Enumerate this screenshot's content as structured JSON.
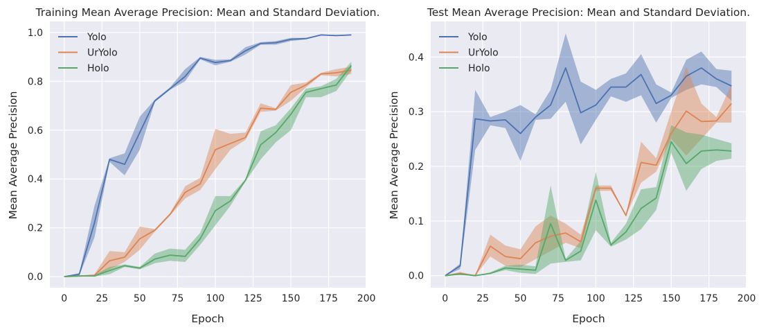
{
  "chart_data": [
    {
      "type": "line",
      "title": "Training Mean Average Precision: Mean and Standard Deviation.",
      "xlabel": "Epoch",
      "ylabel": "Mean Average Precision",
      "xlim": [
        -9.5,
        199.5
      ],
      "ylim": [
        -0.045,
        1.045
      ],
      "xticks": [
        0,
        25,
        50,
        75,
        100,
        125,
        150,
        175,
        200
      ],
      "yticks": [
        0.0,
        0.2,
        0.4,
        0.6,
        0.8,
        1.0
      ],
      "ytick_labels": [
        "0.0",
        "0.2",
        "0.4",
        "0.6",
        "0.8",
        "1.0"
      ],
      "grid": true,
      "legend_position": "top-left",
      "x": [
        0,
        10,
        20,
        30,
        40,
        50,
        60,
        70,
        80,
        90,
        100,
        110,
        120,
        130,
        140,
        150,
        160,
        170,
        180,
        190
      ],
      "series": [
        {
          "name": "Yolo",
          "color": "#4c72b0",
          "mean": [
            0.0,
            0.01,
            0.22,
            0.48,
            0.46,
            0.59,
            0.72,
            0.77,
            0.82,
            0.895,
            0.877,
            0.885,
            0.925,
            0.955,
            0.958,
            0.972,
            0.975,
            0.99,
            0.987,
            0.99
          ],
          "lower": [
            0.0,
            0.005,
            0.16,
            0.47,
            0.415,
            0.52,
            0.715,
            0.765,
            0.8,
            0.89,
            0.865,
            0.88,
            0.91,
            0.95,
            0.95,
            0.965,
            0.972,
            0.988,
            0.985,
            0.988
          ],
          "upper": [
            0.0,
            0.015,
            0.29,
            0.485,
            0.505,
            0.655,
            0.725,
            0.775,
            0.85,
            0.9,
            0.888,
            0.89,
            0.94,
            0.96,
            0.965,
            0.978,
            0.978,
            0.992,
            0.99,
            0.992
          ]
        },
        {
          "name": "UrYolo",
          "color": "#dd8452",
          "mean": [
            0.0,
            0.002,
            0.005,
            0.065,
            0.08,
            0.155,
            0.19,
            0.255,
            0.345,
            0.38,
            0.52,
            0.545,
            0.57,
            0.69,
            0.685,
            0.755,
            0.785,
            0.83,
            0.835,
            0.845
          ],
          "lower": [
            0.0,
            0.0,
            0.0,
            0.03,
            0.06,
            0.11,
            0.185,
            0.25,
            0.32,
            0.355,
            0.44,
            0.52,
            0.56,
            0.675,
            0.68,
            0.72,
            0.775,
            0.825,
            0.82,
            0.83
          ],
          "upper": [
            0.0,
            0.004,
            0.01,
            0.105,
            0.1,
            0.205,
            0.195,
            0.26,
            0.37,
            0.405,
            0.605,
            0.585,
            0.59,
            0.71,
            0.69,
            0.785,
            0.795,
            0.835,
            0.85,
            0.86
          ]
        },
        {
          "name": "Holo",
          "color": "#55a868",
          "mean": [
            0.0,
            0.003,
            0.003,
            0.025,
            0.045,
            0.035,
            0.072,
            0.088,
            0.083,
            0.155,
            0.27,
            0.31,
            0.395,
            0.54,
            0.59,
            0.665,
            0.755,
            0.77,
            0.785,
            0.865
          ],
          "lower": [
            0.0,
            0.0,
            0.0,
            0.01,
            0.04,
            0.03,
            0.055,
            0.065,
            0.06,
            0.13,
            0.21,
            0.29,
            0.39,
            0.48,
            0.55,
            0.6,
            0.735,
            0.735,
            0.76,
            0.845
          ],
          "upper": [
            0.0,
            0.006,
            0.006,
            0.04,
            0.05,
            0.04,
            0.095,
            0.115,
            0.11,
            0.18,
            0.33,
            0.33,
            0.4,
            0.595,
            0.62,
            0.69,
            0.77,
            0.78,
            0.81,
            0.88
          ]
        }
      ]
    },
    {
      "type": "line",
      "title": "Test Mean Average Precision: Mean and Standard Deviation.",
      "xlabel": "Epoch",
      "ylabel": "Mean Average Precision",
      "xlim": [
        -9.5,
        199.5
      ],
      "ylim": [
        -0.022,
        0.465
      ],
      "xticks": [
        0,
        25,
        50,
        75,
        100,
        125,
        150,
        175,
        200
      ],
      "yticks": [
        0.0,
        0.1,
        0.2,
        0.3,
        0.4
      ],
      "ytick_labels": [
        "0.0",
        "0.1",
        "0.2",
        "0.3",
        "0.4"
      ],
      "grid": true,
      "legend_position": "top-left",
      "x": [
        0,
        10,
        20,
        30,
        40,
        50,
        60,
        70,
        80,
        90,
        100,
        110,
        120,
        130,
        140,
        150,
        160,
        170,
        180,
        190
      ],
      "series": [
        {
          "name": "Yolo",
          "color": "#4c72b0",
          "mean": [
            0.0,
            0.018,
            0.287,
            0.283,
            0.285,
            0.26,
            0.29,
            0.312,
            0.38,
            0.298,
            0.312,
            0.345,
            0.345,
            0.368,
            0.315,
            0.33,
            0.365,
            0.38,
            0.36,
            0.347
          ],
          "lower": [
            0.0,
            0.012,
            0.23,
            0.275,
            0.27,
            0.21,
            0.285,
            0.287,
            0.318,
            0.24,
            0.285,
            0.328,
            0.318,
            0.33,
            0.28,
            0.325,
            0.34,
            0.35,
            0.345,
            0.32
          ],
          "upper": [
            0.0,
            0.022,
            0.34,
            0.29,
            0.3,
            0.312,
            0.295,
            0.34,
            0.443,
            0.355,
            0.34,
            0.36,
            0.37,
            0.405,
            0.35,
            0.335,
            0.395,
            0.41,
            0.378,
            0.375
          ]
        },
        {
          "name": "UrYolo",
          "color": "#dd8452",
          "mean": [
            0.0,
            0.004,
            0.0,
            0.054,
            0.035,
            0.031,
            0.06,
            0.072,
            0.078,
            0.062,
            0.16,
            0.16,
            0.11,
            0.207,
            0.202,
            0.26,
            0.301,
            0.282,
            0.283,
            0.315
          ],
          "lower": [
            0.0,
            0.002,
            0.0,
            0.035,
            0.018,
            0.015,
            0.03,
            0.045,
            0.06,
            0.05,
            0.155,
            0.155,
            0.11,
            0.17,
            0.19,
            0.25,
            0.22,
            0.25,
            0.28,
            0.28
          ],
          "upper": [
            0.0,
            0.007,
            0.0,
            0.075,
            0.055,
            0.048,
            0.09,
            0.11,
            0.095,
            0.075,
            0.165,
            0.165,
            0.11,
            0.245,
            0.215,
            0.3,
            0.382,
            0.315,
            0.29,
            0.35
          ]
        },
        {
          "name": "Holo",
          "color": "#55a868",
          "mean": [
            0.0,
            0.003,
            0.0,
            0.004,
            0.014,
            0.012,
            0.01,
            0.095,
            0.028,
            0.045,
            0.138,
            0.056,
            0.08,
            0.123,
            0.142,
            0.245,
            0.205,
            0.228,
            0.23,
            0.228
          ],
          "lower": [
            0.0,
            0.001,
            0.0,
            0.003,
            0.01,
            0.005,
            0.003,
            0.022,
            0.025,
            0.028,
            0.083,
            0.053,
            0.066,
            0.085,
            0.12,
            0.225,
            0.155,
            0.195,
            0.21,
            0.214
          ],
          "upper": [
            0.0,
            0.005,
            0.0,
            0.006,
            0.018,
            0.02,
            0.017,
            0.165,
            0.031,
            0.063,
            0.19,
            0.06,
            0.095,
            0.158,
            0.162,
            0.275,
            0.262,
            0.258,
            0.25,
            0.242
          ]
        }
      ]
    }
  ]
}
